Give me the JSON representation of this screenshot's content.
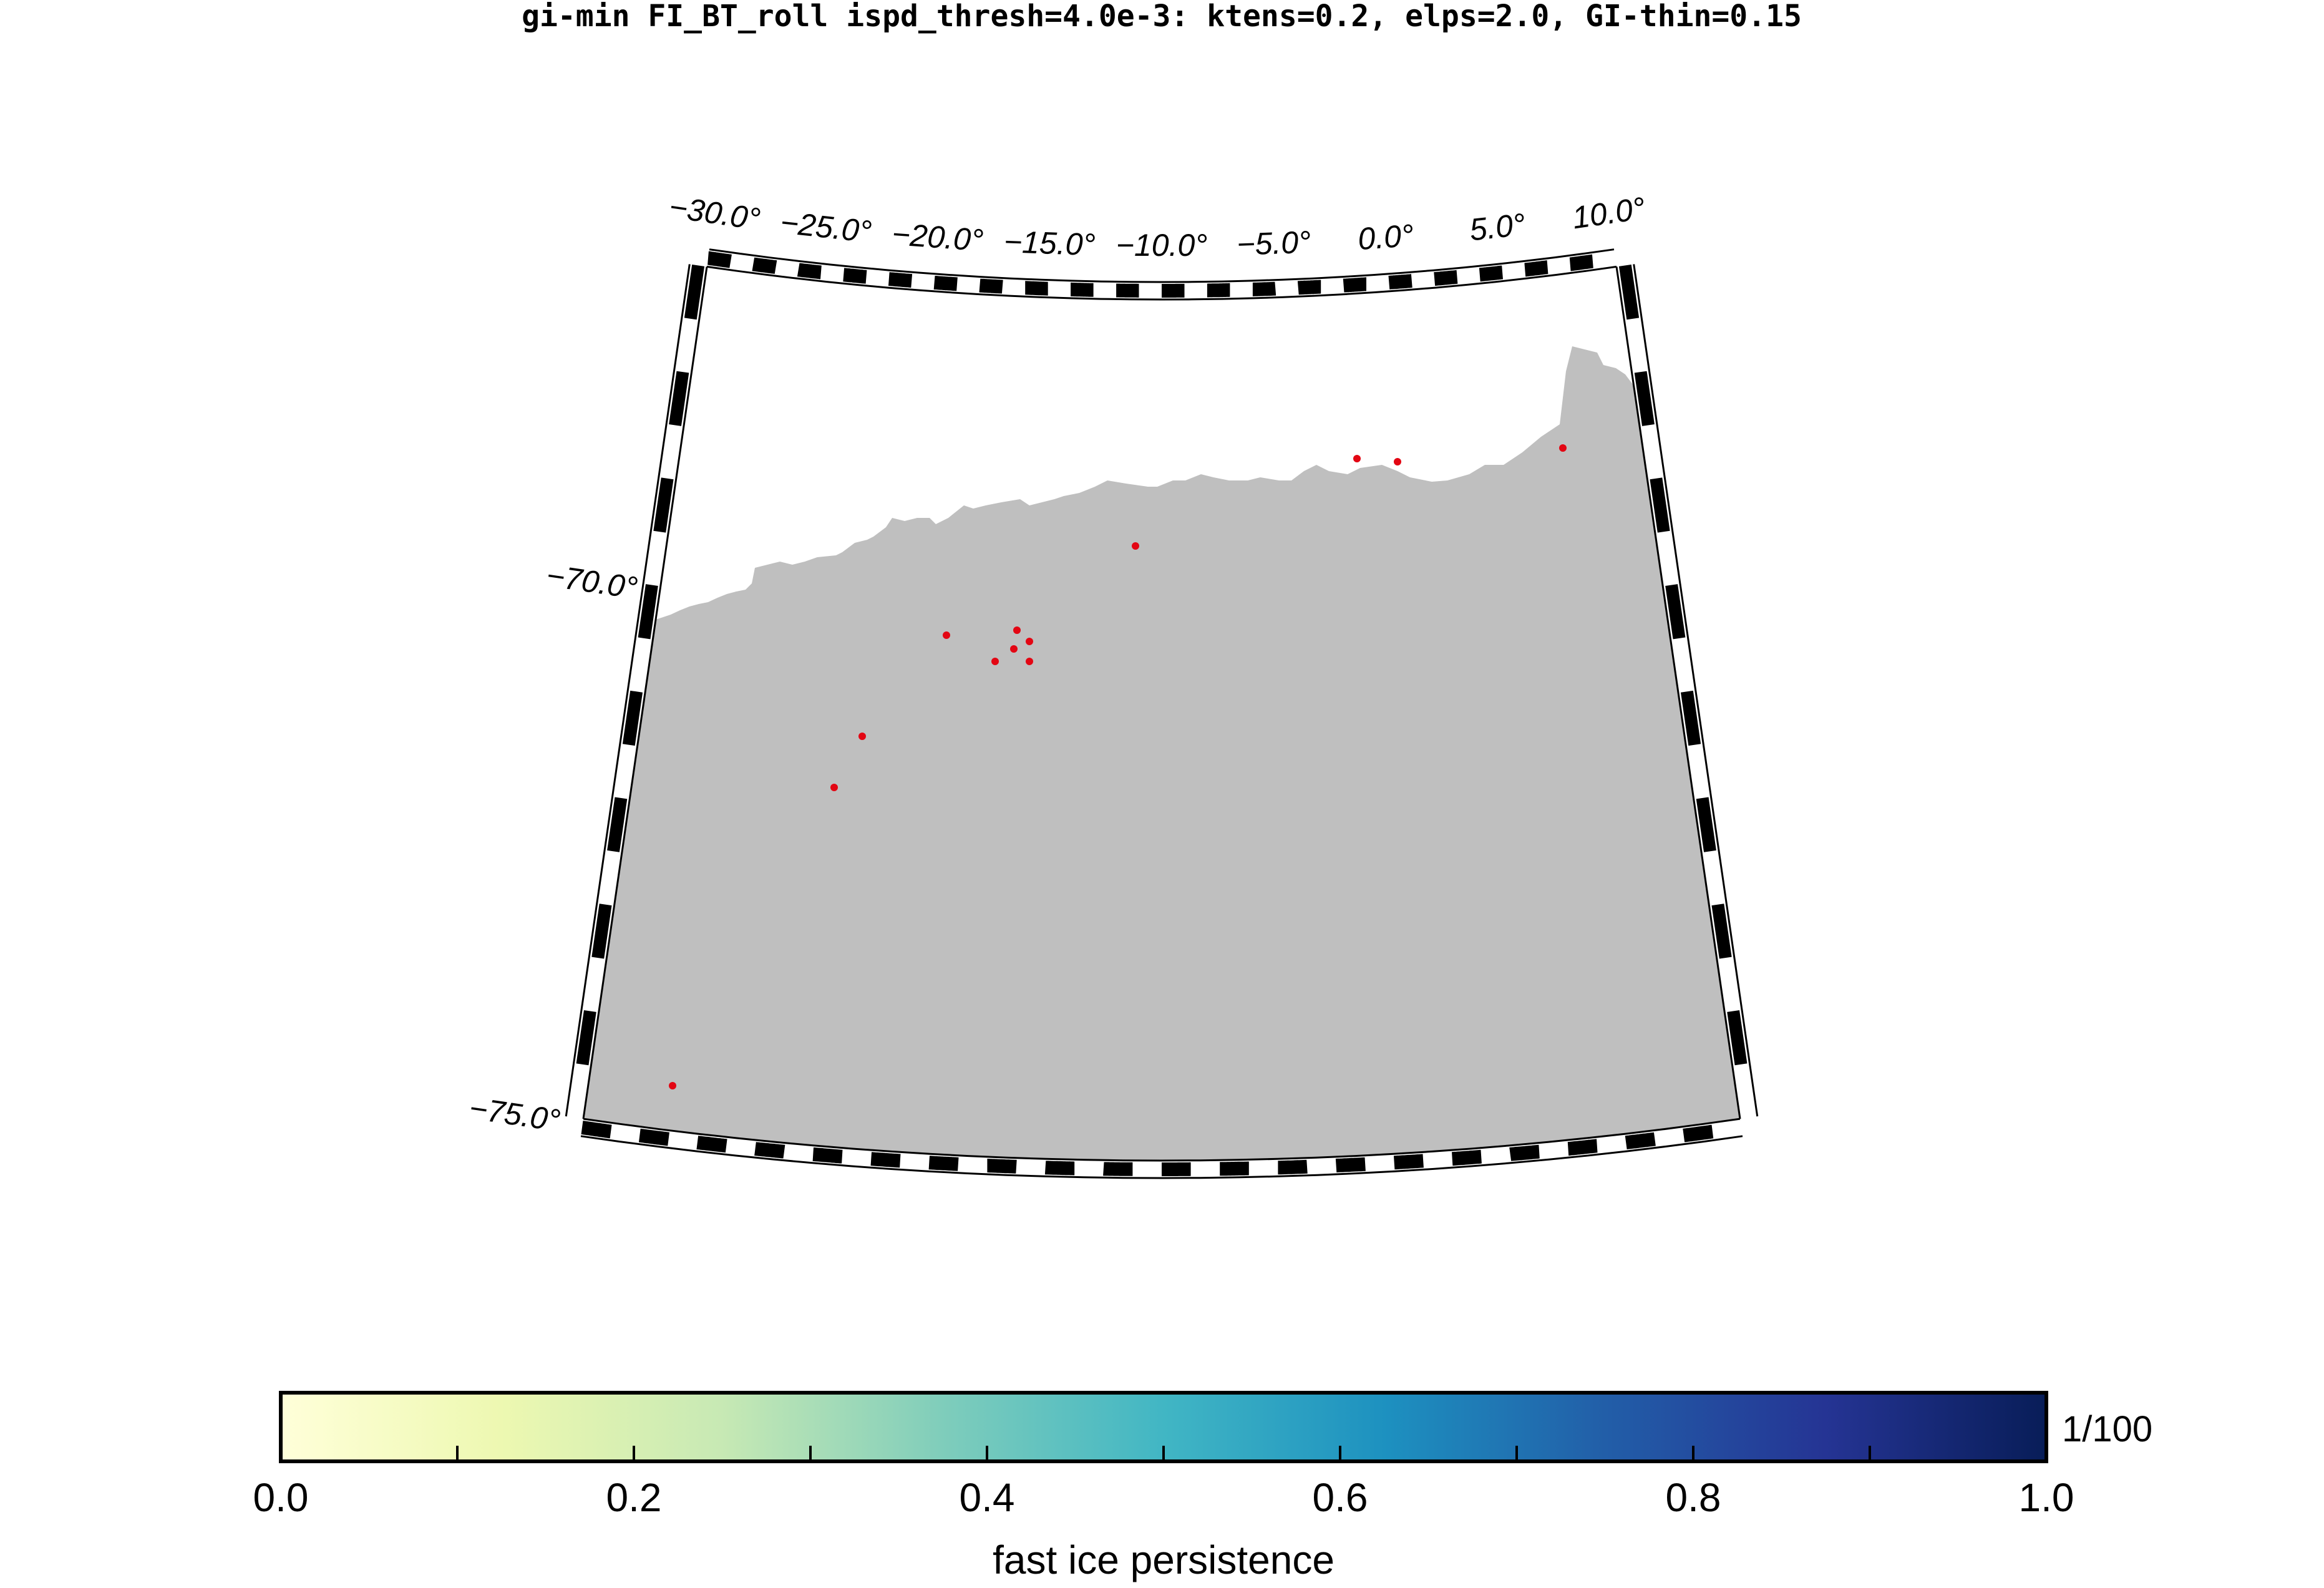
{
  "title": "gi-min FI_BT_roll ispd_thresh=4.0e-3: ktens=0.2, elps=2.0, GI-thin=0.15",
  "map": {
    "projection": "conic (polar sector)",
    "lon_range": [
      -30.0,
      10.0
    ],
    "lat_range": [
      -75.0,
      -67.0
    ],
    "lon_ticks": [
      {
        "value": -30,
        "label": "−30.0°"
      },
      {
        "value": -25,
        "label": "−25.0°"
      },
      {
        "value": -20,
        "label": "−20.0°"
      },
      {
        "value": -15,
        "label": "−15.0°"
      },
      {
        "value": -10,
        "label": "−10.0°"
      },
      {
        "value": -5,
        "label": "−5.0°"
      },
      {
        "value": 0,
        "label": "0.0°"
      },
      {
        "value": 5,
        "label": "5.0°"
      },
      {
        "value": 10,
        "label": "10.0°"
      }
    ],
    "lat_ticks": [
      {
        "value": -70,
        "label": "−70.0°"
      },
      {
        "value": -75,
        "label": "−75.0°"
      }
    ],
    "land_color": "#bfbfbf",
    "marker_color": "#e30613"
  },
  "colorbar": {
    "label": "fast ice persistence",
    "unit": "1/100",
    "range": [
      0.0,
      1.0
    ],
    "tick_labels": [
      "0.0",
      "0.2",
      "0.4",
      "0.6",
      "0.8",
      "1.0"
    ],
    "colormap": "YlGnBu",
    "stops": [
      "#ffffd9",
      "#edf8b1",
      "#c7e9b4",
      "#7fcdbb",
      "#41b6c4",
      "#1d91c0",
      "#225ea8",
      "#253494",
      "#081d58"
    ]
  }
}
